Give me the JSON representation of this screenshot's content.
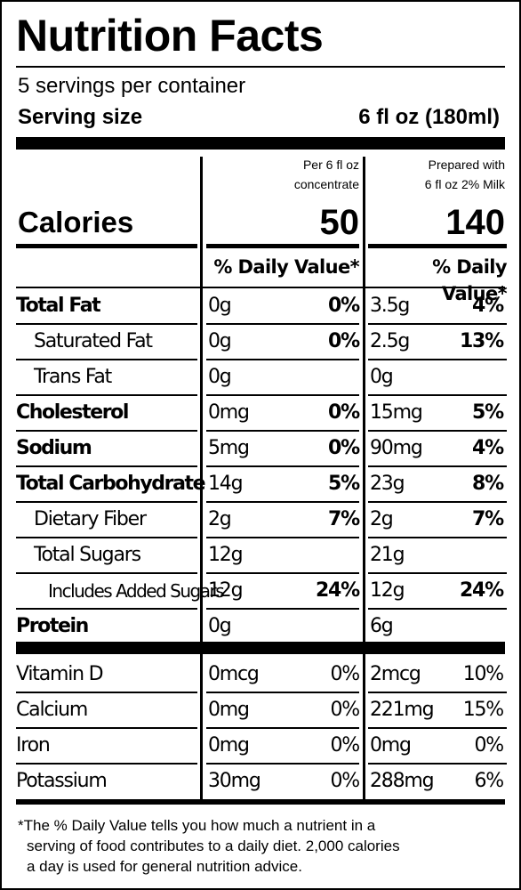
{
  "title": "Nutrition Facts",
  "servings_per_container": "5 servings per container",
  "serving_size_label": "Serving size",
  "serving_size_value": "6 fl oz (180ml)",
  "columns": [
    {
      "header_line1": "Per 6 fl oz",
      "header_line2": "concentrate",
      "calories": "50",
      "dv_header": "% Daily Value*"
    },
    {
      "header_line1": "Prepared with",
      "header_line2": "6 fl oz 2% Milk",
      "calories": "140",
      "dv_header": "% Daily Value*"
    }
  ],
  "calories_label": "Calories",
  "nutrients": [
    {
      "name": "Total Fat",
      "style": "bold",
      "c1_amount": "0g",
      "c1_dv": "0%",
      "c2_amount": "3.5g",
      "c2_dv": "4%"
    },
    {
      "name": "Saturated Fat",
      "style": "indent1",
      "c1_amount": "0g",
      "c1_dv": "0%",
      "c2_amount": "2.5g",
      "c2_dv": "13%"
    },
    {
      "name": "Trans Fat",
      "style": "indent1",
      "c1_amount": "0g",
      "c1_dv": "",
      "c2_amount": "0g",
      "c2_dv": ""
    },
    {
      "name": "Cholesterol",
      "style": "bold",
      "c1_amount": "0mg",
      "c1_dv": "0%",
      "c2_amount": "15mg",
      "c2_dv": "5%"
    },
    {
      "name": "Sodium",
      "style": "bold",
      "c1_amount": "5mg",
      "c1_dv": "0%",
      "c2_amount": "90mg",
      "c2_dv": "4%"
    },
    {
      "name": "Total Carbohydrate",
      "style": "bold",
      "c1_amount": "14g",
      "c1_dv": "5%",
      "c2_amount": "23g",
      "c2_dv": "8%"
    },
    {
      "name": "Dietary Fiber",
      "style": "indent1",
      "c1_amount": "2g",
      "c1_dv": "7%",
      "c2_amount": "2g",
      "c2_dv": "7%"
    },
    {
      "name": "Total Sugars",
      "style": "indent1",
      "c1_amount": "12g",
      "c1_dv": "",
      "c2_amount": "21g",
      "c2_dv": ""
    },
    {
      "name": "Includes Added Sugars",
      "style": "indent2",
      "c1_amount": "12g",
      "c1_dv": "24%",
      "c2_amount": "12g",
      "c2_dv": "24%"
    },
    {
      "name": "Protein",
      "style": "bold",
      "c1_amount": "0g",
      "c1_dv": "",
      "c2_amount": "6g",
      "c2_dv": ""
    }
  ],
  "vitamins": [
    {
      "name": "Vitamin D",
      "c1_amount": "0mcg",
      "c1_dv": "0%",
      "c2_amount": "2mcg",
      "c2_dv": "10%"
    },
    {
      "name": "Calcium",
      "c1_amount": "0mg",
      "c1_dv": "0%",
      "c2_amount": "221mg",
      "c2_dv": "15%"
    },
    {
      "name": "Iron",
      "c1_amount": "0mg",
      "c1_dv": "0%",
      "c2_amount": "0mg",
      "c2_dv": "0%"
    },
    {
      "name": "Potassium",
      "c1_amount": "30mg",
      "c1_dv": "0%",
      "c2_amount": "288mg",
      "c2_dv": "6%"
    }
  ],
  "footnote_lines": [
    "*The % Daily Value tells you how much a nutrient in a",
    "serving of food contributes to a daily diet. 2,000 calories",
    "a day is used for general nutrition advice."
  ]
}
